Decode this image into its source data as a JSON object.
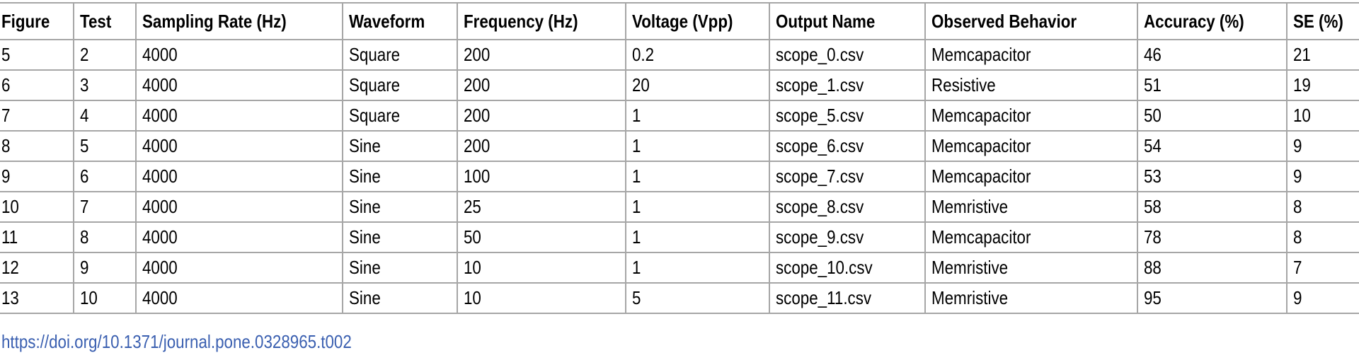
{
  "table": {
    "headers": [
      "Figure",
      "Test",
      "Sampling Rate (Hz)",
      "Waveform",
      "Frequency (Hz)",
      "Voltage (Vpp)",
      "Output Name",
      "Observed Behavior",
      "Accuracy (%)",
      "SE (%)"
    ],
    "rows": [
      [
        "5",
        "2",
        "4000",
        "Square",
        "200",
        "0.2",
        "scope_0.csv",
        "Memcapacitor",
        "46",
        "21"
      ],
      [
        "6",
        "3",
        "4000",
        "Square",
        "200",
        "20",
        "scope_1.csv",
        "Resistive",
        "51",
        "19"
      ],
      [
        "7",
        "4",
        "4000",
        "Square",
        "200",
        "1",
        "scope_5.csv",
        "Memcapacitor",
        "50",
        "10"
      ],
      [
        "8",
        "5",
        "4000",
        "Sine",
        "200",
        "1",
        "scope_6.csv",
        "Memcapacitor",
        "54",
        "9"
      ],
      [
        "9",
        "6",
        "4000",
        "Sine",
        "100",
        "1",
        "scope_7.csv",
        "Memcapacitor",
        "53",
        "9"
      ],
      [
        "10",
        "7",
        "4000",
        "Sine",
        "25",
        "1",
        "scope_8.csv",
        "Memristive",
        "58",
        "8"
      ],
      [
        "11",
        "8",
        "4000",
        "Sine",
        "50",
        "1",
        "scope_9.csv",
        "Memcapacitor",
        "78",
        "8"
      ],
      [
        "12",
        "9",
        "4000",
        "Sine",
        "10",
        "1",
        "scope_10.csv",
        "Memristive",
        "88",
        "7"
      ],
      [
        "13",
        "10",
        "4000",
        "Sine",
        "10",
        "5",
        "scope_11.csv",
        "Memristive",
        "95",
        "9"
      ]
    ]
  },
  "doi_link": "https://doi.org/10.1371/journal.pone.0328965.t002",
  "colors": {
    "border": "#a6a6a6",
    "link": "#3a5fb0"
  }
}
